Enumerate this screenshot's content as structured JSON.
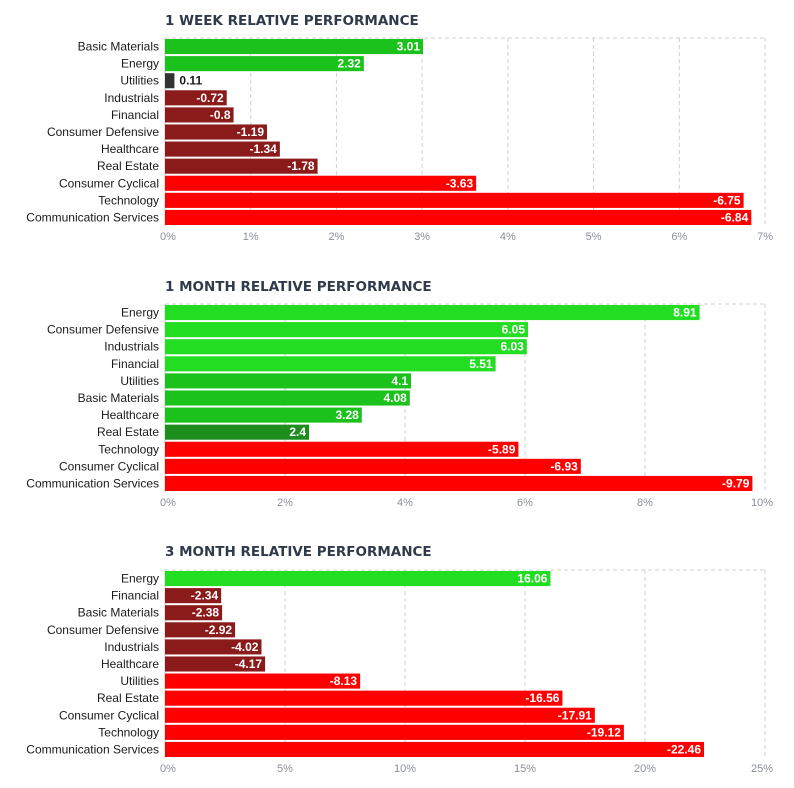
{
  "chart_data": [
    {
      "type": "bar",
      "orientation": "horizontal",
      "title": "1 WEEK RELATIVE PERFORMANCE",
      "categories": [
        "Basic Materials",
        "Energy",
        "Utilities",
        "Industrials",
        "Financial",
        "Consumer Defensive",
        "Healthcare",
        "Real Estate",
        "Consumer Cyclical",
        "Technology",
        "Communication Services"
      ],
      "values": [
        3.01,
        2.32,
        0.11,
        -0.72,
        -0.8,
        -1.19,
        -1.34,
        -1.78,
        -3.63,
        -6.75,
        -6.84
      ],
      "value_labels": [
        "3.01",
        "2.32",
        "0.11",
        "-0.72",
        "-0.8",
        "-1.19",
        "-1.34",
        "-1.78",
        "-3.63",
        "-6.75",
        "-6.84"
      ],
      "xlim": [
        0,
        7
      ],
      "ticks": [
        "0%",
        "1%",
        "2%",
        "3%",
        "4%",
        "5%",
        "6%",
        "7%"
      ],
      "bar_length": "absolute value",
      "grid": true
    },
    {
      "type": "bar",
      "orientation": "horizontal",
      "title": "1 MONTH RELATIVE PERFORMANCE",
      "categories": [
        "Energy",
        "Consumer Defensive",
        "Industrials",
        "Financial",
        "Utilities",
        "Basic Materials",
        "Healthcare",
        "Real Estate",
        "Technology",
        "Consumer Cyclical",
        "Communication Services"
      ],
      "values": [
        8.91,
        6.05,
        6.03,
        5.51,
        4.1,
        4.08,
        3.28,
        2.4,
        -5.89,
        -6.93,
        -9.79
      ],
      "value_labels": [
        "8.91",
        "6.05",
        "6.03",
        "5.51",
        "4.1",
        "4.08",
        "3.28",
        "2.4",
        "-5.89",
        "-6.93",
        "-9.79"
      ],
      "xlim": [
        0,
        10
      ],
      "ticks": [
        "0%",
        "2%",
        "4%",
        "6%",
        "8%",
        "10%"
      ],
      "bar_length": "absolute value",
      "grid": true
    },
    {
      "type": "bar",
      "orientation": "horizontal",
      "title": "3 MONTH RELATIVE PERFORMANCE",
      "categories": [
        "Energy",
        "Financial",
        "Basic Materials",
        "Consumer Defensive",
        "Industrials",
        "Healthcare",
        "Utilities",
        "Real Estate",
        "Consumer Cyclical",
        "Technology",
        "Communication Services"
      ],
      "values": [
        16.06,
        -2.34,
        -2.38,
        -2.92,
        -4.02,
        -4.17,
        -8.13,
        -16.56,
        -17.91,
        -19.12,
        -22.46
      ],
      "value_labels": [
        "16.06",
        "-2.34",
        "-2.38",
        "-2.92",
        "-4.02",
        "-4.17",
        "-8.13",
        "-16.56",
        "-17.91",
        "-19.12",
        "-22.46"
      ],
      "xlim": [
        0,
        25
      ],
      "ticks": [
        "0%",
        "5%",
        "10%",
        "15%",
        "20%",
        "25%"
      ],
      "bar_length": "absolute value",
      "grid": true
    }
  ],
  "colors": {
    "positive_strong": "#22dd22",
    "positive_mid": "#1cc21c",
    "positive_weak": "#1d8d1d",
    "neutral": "#333333",
    "negative_weak": "#8b1a1a",
    "negative_strong": "#ff0000",
    "grid": "#d0d0d0",
    "title": "#2f3a4a"
  }
}
